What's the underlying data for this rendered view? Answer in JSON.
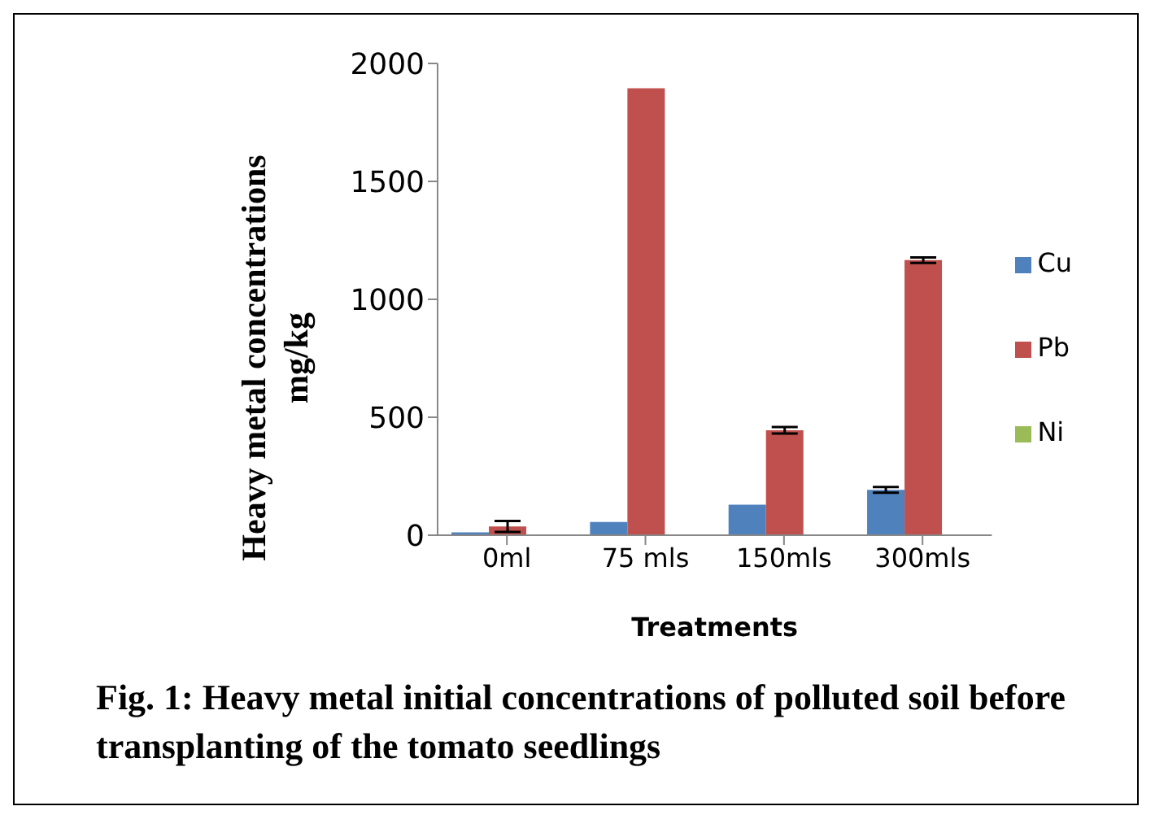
{
  "chart_data": {
    "type": "bar",
    "title": "Fig. 1: Heavy metal initial concentrations of polluted soil before transplanting of the tomato seedlings",
    "xlabel": "Treatments",
    "ylabel": "Heavy metal concentrations mg/kg",
    "categories": [
      "0ml",
      "75 mls",
      "150mls",
      "300mls"
    ],
    "series": [
      {
        "name": "Cu",
        "color": "#4f81bd",
        "values": [
          12,
          56,
          129,
          192
        ],
        "errors": [
          null,
          null,
          null,
          12
        ]
      },
      {
        "name": "Pb",
        "color": "#c0504d",
        "values": [
          37,
          1895,
          445,
          1166
        ],
        "errors": [
          23,
          null,
          14,
          12
        ]
      },
      {
        "name": "Ni",
        "color": "#9bbb59",
        "values": [
          0,
          0,
          0,
          0
        ]
      }
    ],
    "ylim": [
      0,
      2000
    ],
    "yticks": [
      0,
      500,
      1000,
      1500,
      2000
    ],
    "grid": false,
    "legend": "right"
  }
}
